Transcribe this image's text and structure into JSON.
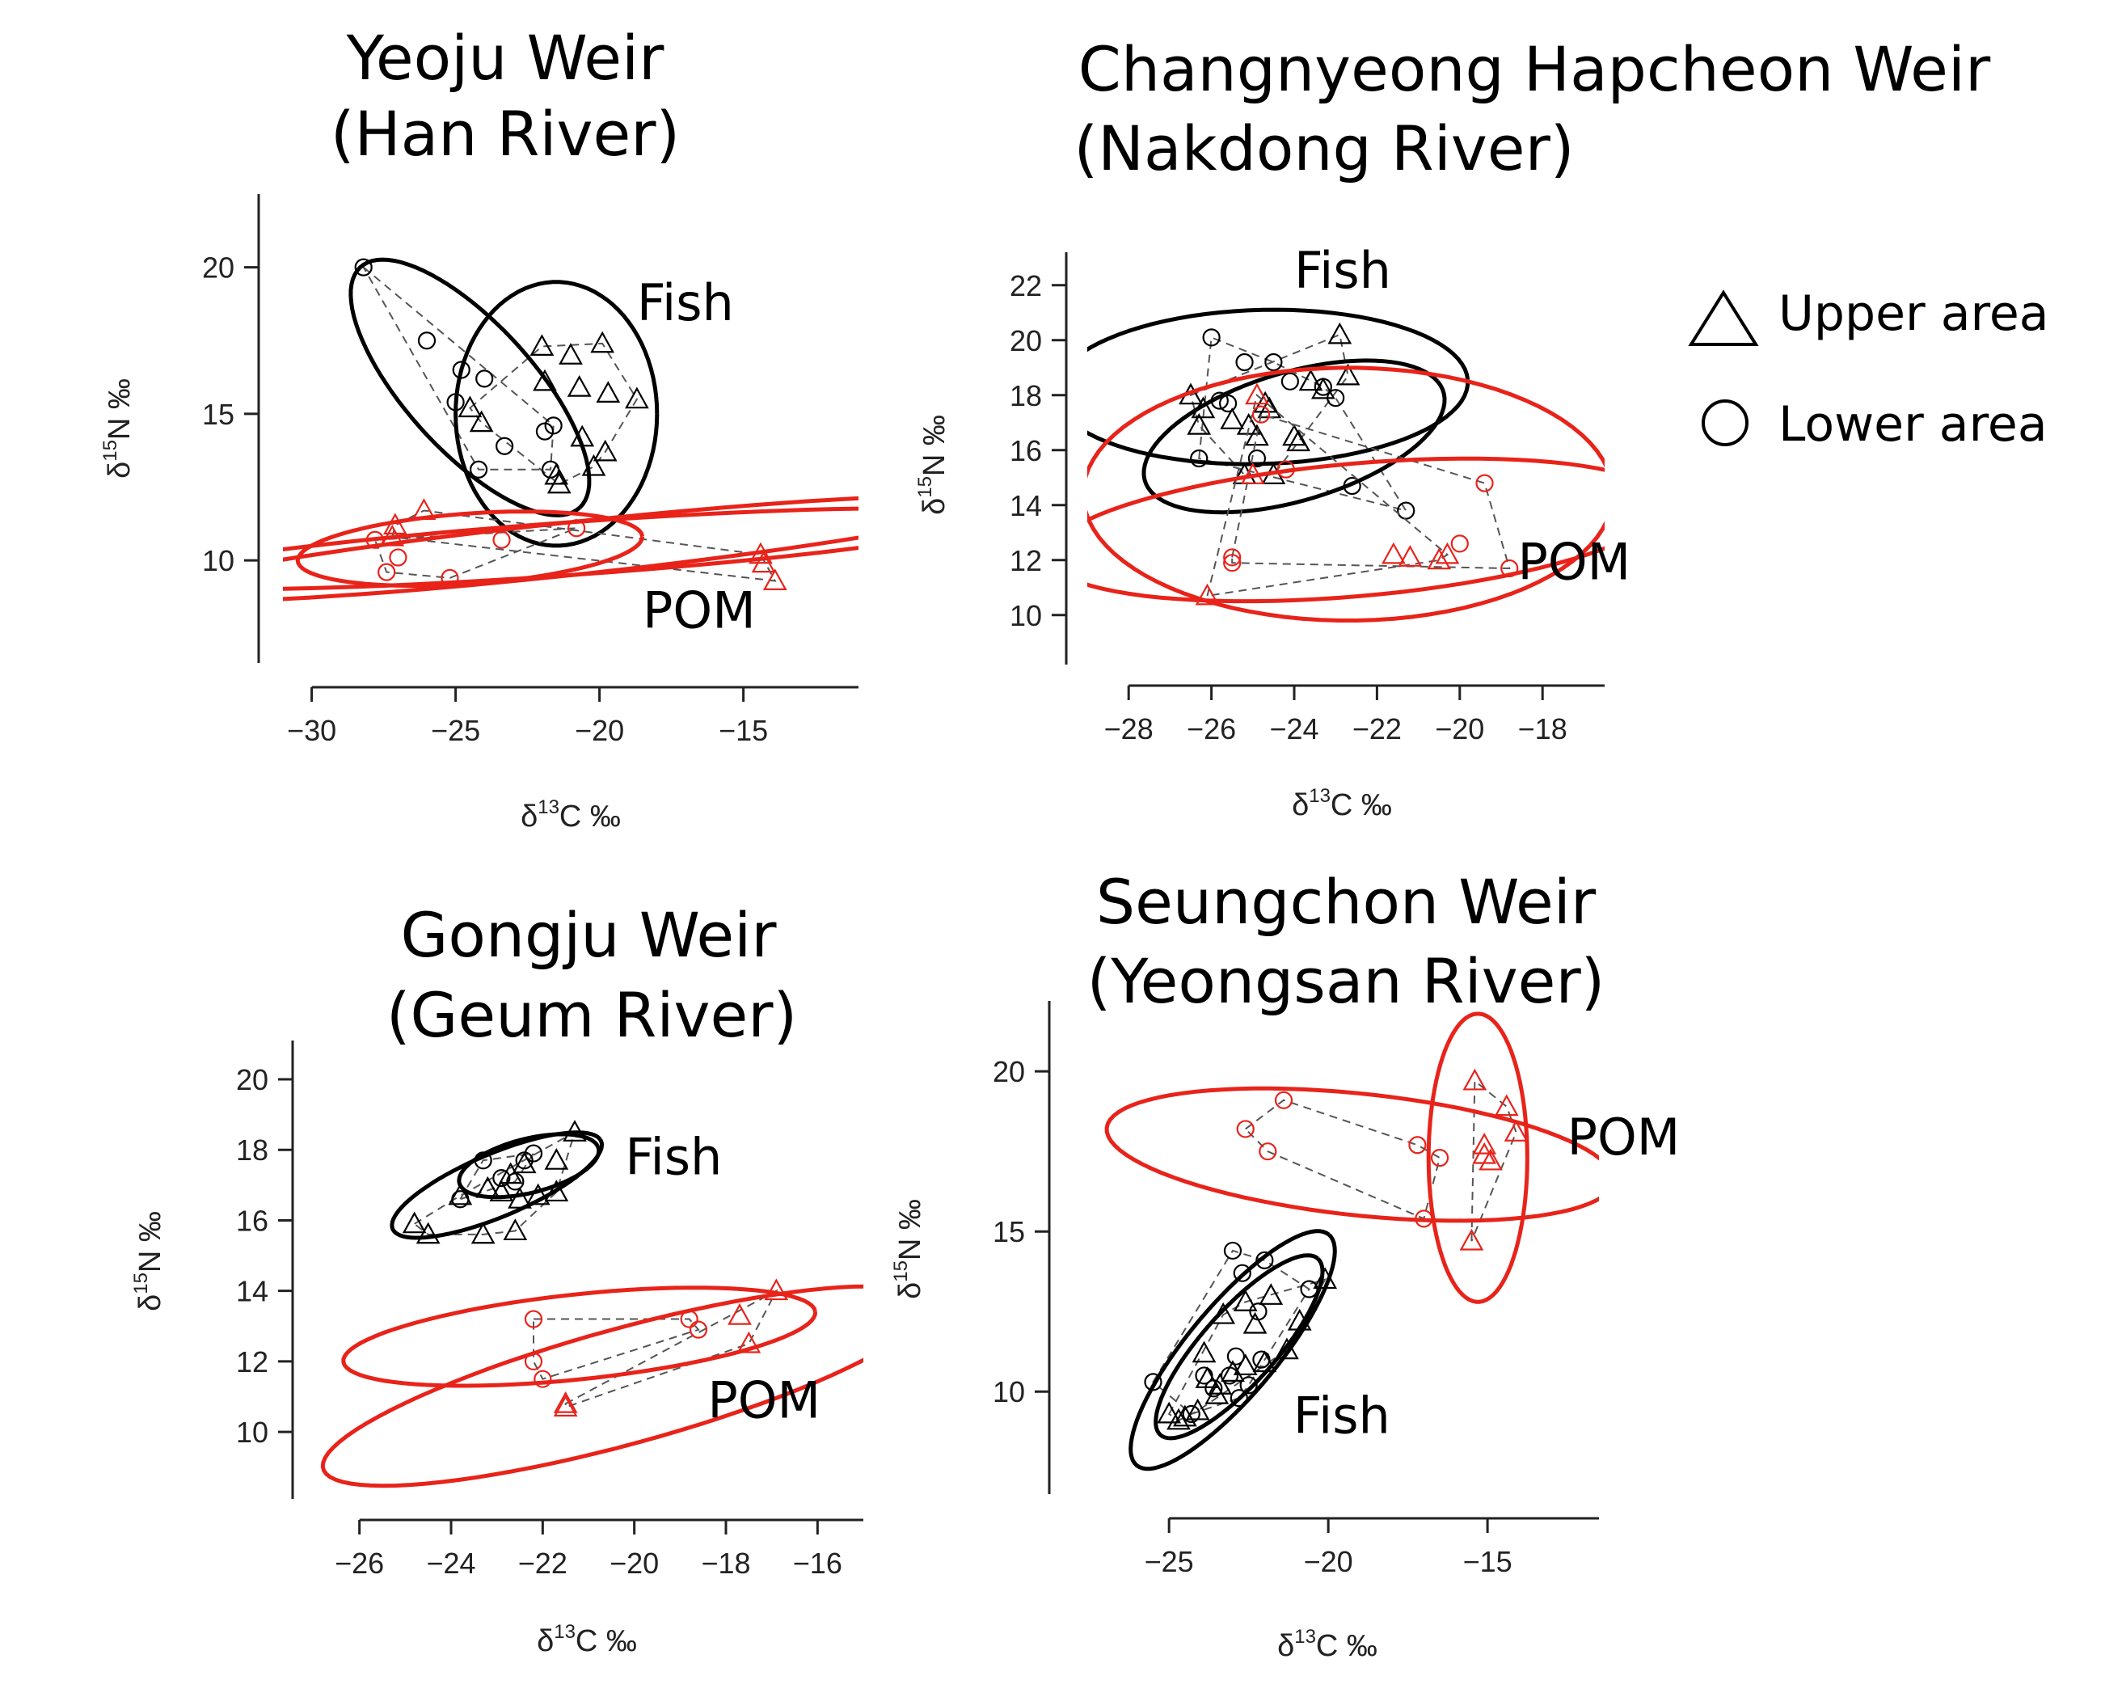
{
  "colors": {
    "fish": "#000000",
    "pom": "#e8231a",
    "hull": "#555555"
  },
  "legend": {
    "upper_label": "Upper area",
    "lower_label": "Lower area",
    "upper_marker": "triangle",
    "lower_marker": "circle"
  },
  "chart_data": [
    {
      "type": "scatter",
      "title_lines": [
        "Yeoju Weir",
        "(Han River)"
      ],
      "xlabel": "δ13C ‰",
      "ylabel": "δ15N ‰",
      "xlim": [
        -31,
        -11
      ],
      "ylim": [
        6.5,
        22.5
      ],
      "xticks": [
        -30,
        -25,
        -20,
        -15
      ],
      "yticks": [
        10,
        15,
        20
      ],
      "group_labels": [
        {
          "text": "Fish",
          "x": -18.7,
          "y": 18.2
        },
        {
          "text": "POM",
          "x": -18.5,
          "y": 7.7
        }
      ],
      "groups": [
        {
          "name": "Fish",
          "upper": [
            [
              -22,
              17.3
            ],
            [
              -21,
              17.0
            ],
            [
              -19.9,
              17.4
            ],
            [
              -21.9,
              16.1
            ],
            [
              -20.7,
              15.9
            ],
            [
              -19.7,
              15.7
            ],
            [
              -18.7,
              15.5
            ],
            [
              -24.5,
              15.2
            ],
            [
              -24.1,
              14.7
            ],
            [
              -20.6,
              14.2
            ],
            [
              -19.8,
              13.7
            ],
            [
              -20.2,
              13.2
            ],
            [
              -21.5,
              12.9
            ],
            [
              -21.4,
              12.6
            ]
          ],
          "lower": [
            [
              -28.2,
              20.0
            ],
            [
              -26.0,
              17.5
            ],
            [
              -24.8,
              16.5
            ],
            [
              -24.0,
              16.2
            ],
            [
              -25.0,
              15.4
            ],
            [
              -21.6,
              14.6
            ],
            [
              -21.9,
              14.4
            ],
            [
              -23.3,
              13.9
            ],
            [
              -24.2,
              13.1
            ],
            [
              -21.7,
              13.1
            ]
          ],
          "ellipses": [
            {
              "cx": -24.5,
              "cy": 15.9,
              "rx": 5.6,
              "ry": 2.2,
              "angle": -47
            },
            {
              "cx": -21.5,
              "cy": 15.0,
              "rx": 3.5,
              "ry": 4.5,
              "angle": 0
            }
          ]
        },
        {
          "name": "POM",
          "upper": [
            [
              -26.1,
              11.7
            ],
            [
              -27.1,
              11.2
            ],
            [
              -27.2,
              10.8
            ],
            [
              -14.4,
              10.2
            ],
            [
              -14.3,
              9.9
            ],
            [
              -13.9,
              9.3
            ]
          ],
          "lower": [
            [
              -27.8,
              10.7
            ],
            [
              -27.0,
              10.1
            ],
            [
              -27.4,
              9.6
            ],
            [
              -25.2,
              9.4
            ],
            [
              -23.4,
              10.7
            ],
            [
              -20.8,
              11.1
            ]
          ],
          "ellipses": [
            {
              "cx": -21,
              "cy": 10.4,
              "rx": 15,
              "ry": 0.9,
              "angle": 6
            },
            {
              "cx": -21,
              "cy": 10.4,
              "rx": 15,
              "ry": 0.9,
              "angle": 4
            },
            {
              "cx": -24.5,
              "cy": 10.4,
              "rx": 6,
              "ry": 1.2,
              "angle": 4
            }
          ]
        }
      ]
    },
    {
      "type": "scatter",
      "title_lines": [
        "Changnyeong Hapcheon Weir",
        "(Nakdong River)"
      ],
      "xlabel": "δ13C ‰",
      "ylabel": "δ15N ‰",
      "xlim": [
        -29,
        -16.5
      ],
      "ylim": [
        8.2,
        23.2
      ],
      "xticks": [
        -28,
        -26,
        -24,
        -22,
        -20,
        -18
      ],
      "yticks": [
        10,
        12,
        14,
        16,
        18,
        20,
        22
      ],
      "group_labels": [
        {
          "text": "Fish",
          "x": -24,
          "y": 21.9
        },
        {
          "text": "POM",
          "x": -18.6,
          "y": 11.3
        }
      ],
      "groups": [
        {
          "name": "Fish",
          "upper": [
            [
              -26.5,
              18
            ],
            [
              -26.2,
              17.5
            ],
            [
              -25.5,
              17.1
            ],
            [
              -25.1,
              16.9
            ],
            [
              -24.6,
              17.5
            ],
            [
              -24.7,
              17.7
            ],
            [
              -24,
              16.5
            ],
            [
              -23.6,
              18.5
            ],
            [
              -23.3,
              18.2
            ],
            [
              -22.9,
              20.2
            ],
            [
              -22.7,
              18.7
            ],
            [
              -25.2,
              15.1
            ],
            [
              -24.5,
              15.1
            ],
            [
              -23.9,
              16.3
            ],
            [
              -26.3,
              16.9
            ],
            [
              -24.9,
              16.5
            ]
          ],
          "lower": [
            [
              -26,
              20.1
            ],
            [
              -25.2,
              19.2
            ],
            [
              -24.5,
              19.2
            ],
            [
              -25.8,
              17.8
            ],
            [
              -25.6,
              17.7
            ],
            [
              -24.1,
              18.5
            ],
            [
              -23.3,
              18.3
            ],
            [
              -23,
              17.9
            ],
            [
              -26.3,
              15.7
            ],
            [
              -24.9,
              15.7
            ],
            [
              -22.6,
              14.7
            ],
            [
              -21.3,
              13.8
            ]
          ],
          "ellipses": [
            {
              "cx": -24.8,
              "cy": 18.3,
              "rx": 5.0,
              "ry": 2.8,
              "angle": 3
            },
            {
              "cx": -24.0,
              "cy": 16.5,
              "rx": 4.0,
              "ry": 2.2,
              "angle": 30
            }
          ]
        },
        {
          "name": "POM",
          "upper": [
            [
              -24.9,
              18.0
            ],
            [
              -25.0,
              15.1
            ],
            [
              -26.1,
              10.7
            ],
            [
              -21.6,
              12.2
            ],
            [
              -21.2,
              12.1
            ],
            [
              -20.5,
              12.0
            ],
            [
              -20.3,
              12.2
            ]
          ],
          "lower": [
            [
              -25.5,
              12.1
            ],
            [
              -25.5,
              11.9
            ],
            [
              -20.0,
              12.6
            ],
            [
              -19.4,
              14.8
            ],
            [
              -18.8,
              11.7
            ],
            [
              -24.8,
              17.3
            ],
            [
              -24.2,
              15.3
            ]
          ],
          "ellipses": [
            {
              "cx": -22.7,
              "cy": 14.4,
              "rx": 6.4,
              "ry": 4.6,
              "angle": 0
            },
            {
              "cx": -22.5,
              "cy": 13.1,
              "rx": 7.5,
              "ry": 2.4,
              "angle": 8
            }
          ]
        }
      ]
    },
    {
      "type": "scatter",
      "title_lines": [
        "Gongju Weir",
        "(Geum River)"
      ],
      "xlabel": "δ13C ‰",
      "ylabel": "δ15N ‰",
      "xlim": [
        -27,
        -15
      ],
      "ylim": [
        8.1,
        21.1
      ],
      "xticks": [
        -26,
        -24,
        -22,
        -20,
        -18,
        -16
      ],
      "yticks": [
        10,
        12,
        14,
        16,
        18,
        20
      ],
      "group_labels": [
        {
          "text": "Fish",
          "x": -20.2,
          "y": 17.3
        },
        {
          "text": "POM",
          "x": -18.4,
          "y": 10.4
        }
      ],
      "groups": [
        {
          "name": "Fish",
          "upper": [
            [
              -24.8,
              15.9
            ],
            [
              -24.5,
              15.6
            ],
            [
              -23.3,
              15.6
            ],
            [
              -22.6,
              15.7
            ],
            [
              -23.8,
              16.7
            ],
            [
              -23.2,
              16.9
            ],
            [
              -22.9,
              16.8
            ],
            [
              -22.5,
              16.6
            ],
            [
              -22.1,
              16.7
            ],
            [
              -22.7,
              17.3
            ],
            [
              -22.4,
              17.6
            ],
            [
              -21.7,
              17.7
            ],
            [
              -21.3,
              18.5
            ],
            [
              -21.7,
              16.8
            ]
          ],
          "lower": [
            [
              -23.3,
              17.7
            ],
            [
              -22.2,
              17.9
            ],
            [
              -22.4,
              17.7
            ],
            [
              -23.8,
              16.6
            ],
            [
              -22.9,
              17.2
            ],
            [
              -22.6,
              17.1
            ]
          ],
          "ellipses": [
            {
              "cx": -23.0,
              "cy": 17.0,
              "rx": 2.6,
              "ry": 0.85,
              "angle": 30
            },
            {
              "cx": -22.3,
              "cy": 17.55,
              "rx": 1.6,
              "ry": 0.75,
              "angle": 20
            }
          ]
        },
        {
          "name": "POM",
          "upper": [
            [
              -21.5,
              10.8
            ],
            [
              -21.5,
              10.7
            ],
            [
              -17.5,
              12.5
            ],
            [
              -17.7,
              13.3
            ],
            [
              -16.9,
              14.0
            ]
          ],
          "lower": [
            [
              -22.2,
              13.2
            ],
            [
              -22.2,
              12.0
            ],
            [
              -22.0,
              11.5
            ],
            [
              -18.8,
              13.2
            ],
            [
              -18.6,
              12.9
            ]
          ],
          "ellipses": [
            {
              "cx": -21.2,
              "cy": 12.7,
              "rx": 5.2,
              "ry": 1.2,
              "angle": 8
            },
            {
              "cx": -20.2,
              "cy": 11.3,
              "rx": 7,
              "ry": 1.6,
              "angle": 20
            }
          ]
        }
      ]
    },
    {
      "type": "scatter",
      "title_lines": [
        "Seungchon Weir",
        "(Yeongsan River)"
      ],
      "xlabel": "δ13C ‰",
      "ylabel": "δ15N ‰",
      "xlim": [
        -28,
        -11.5
      ],
      "ylim": [
        6.8,
        22.2
      ],
      "xticks": [
        -25,
        -20,
        -15
      ],
      "yticks": [
        10,
        15,
        20
      ],
      "group_labels": [
        {
          "text": "Fish",
          "x": -21.1,
          "y": 8.7
        },
        {
          "text": "POM",
          "x": -12.5,
          "y": 17.4
        }
      ],
      "groups": [
        {
          "name": "Fish",
          "upper": [
            [
              -25.0,
              9.3
            ],
            [
              -24.5,
              9.2
            ],
            [
              -24.1,
              9.4
            ],
            [
              -23.5,
              9.9
            ],
            [
              -23.8,
              10.4
            ],
            [
              -23.4,
              10.2
            ],
            [
              -23.0,
              10.6
            ],
            [
              -22.6,
              10.8
            ],
            [
              -22.0,
              10.9
            ],
            [
              -21.3,
              11.3
            ],
            [
              -23.3,
              12.4
            ],
            [
              -22.6,
              12.8
            ],
            [
              -21.8,
              13.0
            ],
            [
              -20.9,
              12.2
            ],
            [
              -20.1,
              13.5
            ],
            [
              -23.9,
              11.2
            ],
            [
              -22.3,
              12.1
            ],
            [
              -24.7,
              9.1
            ]
          ],
          "lower": [
            [
              -25.5,
              10.3
            ],
            [
              -23.9,
              10.5
            ],
            [
              -23.0,
              14.4
            ],
            [
              -22.7,
              13.7
            ],
            [
              -22.0,
              14.1
            ],
            [
              -20.6,
              13.2
            ],
            [
              -22.2,
              12.5
            ],
            [
              -22.9,
              11.1
            ],
            [
              -22.1,
              11.0
            ],
            [
              -23.1,
              10.5
            ],
            [
              -23.6,
              10.1
            ],
            [
              -24.3,
              9.3
            ],
            [
              -22.5,
              10.2
            ],
            [
              -22.8,
              9.8
            ]
          ],
          "ellipses": [
            {
              "cx": -23.0,
              "cy": 11.3,
              "rx": 4.7,
              "ry": 1.4,
              "angle": 50
            },
            {
              "cx": -22.8,
              "cy": 11.4,
              "rx": 3.7,
              "ry": 1.15,
              "angle": 48
            }
          ]
        },
        {
          "name": "POM",
          "upper": [
            [
              -15.4,
              19.7
            ],
            [
              -14.4,
              18.9
            ],
            [
              -14.1,
              18.1
            ],
            [
              -15.1,
              17.4
            ],
            [
              -15.1,
              17.7
            ],
            [
              -15.5,
              14.7
            ],
            [
              -14.9,
              17.2
            ]
          ],
          "lower": [
            [
              -22.6,
              18.2
            ],
            [
              -21.4,
              19.1
            ],
            [
              -21.9,
              17.5
            ],
            [
              -17.2,
              17.7
            ],
            [
              -16.5,
              17.3
            ],
            [
              -17.0,
              15.4
            ]
          ],
          "ellipses": [
            {
              "cx": -19.0,
              "cy": 17.4,
              "rx": 8.0,
              "ry": 1.9,
              "angle": -6
            },
            {
              "cx": -15.3,
              "cy": 17.3,
              "rx": 1.55,
              "ry": 4.5,
              "angle": 0
            }
          ]
        }
      ]
    }
  ]
}
